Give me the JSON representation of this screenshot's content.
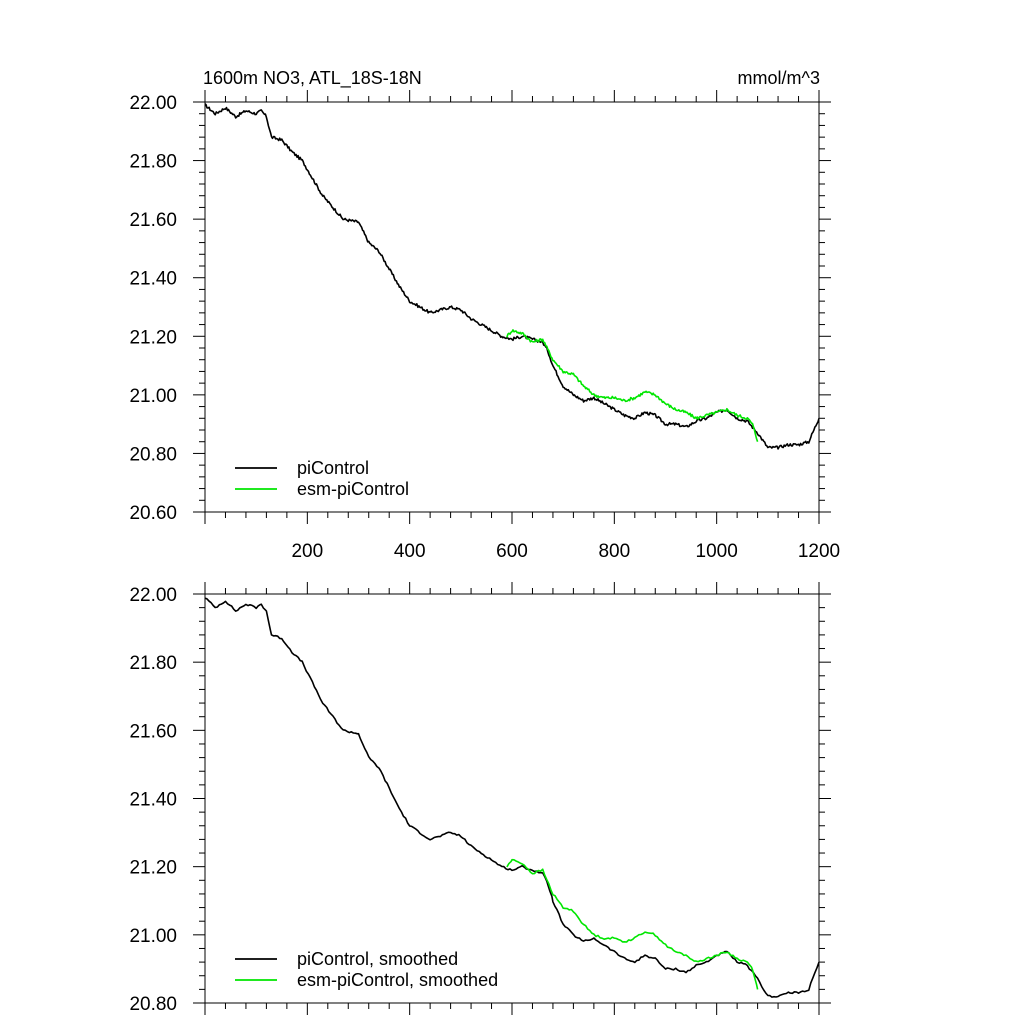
{
  "figure": {
    "title": "1600m NO3, ATL_18S-18N",
    "units": "mmol/m^3"
  },
  "colors": {
    "picontrol": "#000000",
    "esm_picontrol": "#00e600",
    "axis": "#000000"
  },
  "chart_data": [
    {
      "type": "line",
      "panel": "top",
      "title": "1600m NO3, ATL_18S-18N",
      "units": "mmol/m^3",
      "xlim": [
        0,
        1200
      ],
      "ylim": [
        20.6,
        22.0
      ],
      "xticks": [
        200,
        400,
        600,
        800,
        1000,
        1200
      ],
      "xtick_labels": [
        "200",
        "400",
        "600",
        "800",
        "1000",
        "1200"
      ],
      "yticks": [
        20.6,
        20.8,
        21.0,
        21.2,
        21.4,
        21.6,
        21.8,
        22.0
      ],
      "ytick_labels": [
        "20.60",
        "20.80",
        "21.00",
        "21.20",
        "21.40",
        "21.60",
        "21.80",
        "22.00"
      ],
      "legend": {
        "position": "bottom-left",
        "entries": [
          "piControl",
          "esm-piControl"
        ]
      },
      "series": [
        {
          "name": "piControl",
          "color": "#000000",
          "x": [
            0,
            20,
            40,
            60,
            80,
            100,
            110,
            120,
            130,
            150,
            170,
            190,
            210,
            230,
            250,
            270,
            300,
            320,
            340,
            360,
            380,
            400,
            420,
            440,
            460,
            480,
            500,
            520,
            540,
            560,
            580,
            600,
            620,
            640,
            660,
            670,
            680,
            700,
            720,
            740,
            760,
            780,
            800,
            820,
            840,
            860,
            880,
            900,
            920,
            940,
            960,
            980,
            1000,
            1020,
            1040,
            1060,
            1080,
            1100,
            1120,
            1140,
            1160,
            1180,
            1200
          ],
          "y": [
            21.99,
            21.96,
            21.98,
            21.95,
            21.97,
            21.96,
            21.97,
            21.95,
            21.88,
            21.87,
            21.83,
            21.8,
            21.74,
            21.68,
            21.64,
            21.6,
            21.59,
            21.52,
            21.49,
            21.43,
            21.37,
            21.32,
            21.3,
            21.28,
            21.29,
            21.3,
            21.29,
            21.26,
            21.24,
            21.22,
            21.2,
            21.19,
            21.2,
            21.19,
            21.18,
            21.15,
            21.1,
            21.03,
            21.0,
            20.98,
            20.99,
            20.97,
            20.95,
            20.93,
            20.92,
            20.94,
            20.93,
            20.9,
            20.9,
            20.89,
            20.91,
            20.92,
            20.94,
            20.95,
            20.92,
            20.91,
            20.87,
            20.82,
            20.82,
            20.83,
            20.83,
            20.84,
            20.92
          ]
        },
        {
          "name": "esm-piControl",
          "color": "#00e600",
          "x": [
            590,
            600,
            620,
            640,
            660,
            680,
            700,
            720,
            740,
            760,
            780,
            800,
            820,
            840,
            860,
            880,
            900,
            920,
            940,
            960,
            980,
            1000,
            1020,
            1040,
            1060,
            1070,
            1080
          ],
          "y": [
            21.2,
            21.22,
            21.21,
            21.18,
            21.19,
            21.12,
            21.08,
            21.07,
            21.03,
            21.0,
            20.99,
            20.99,
            20.98,
            20.99,
            21.01,
            21.0,
            20.97,
            20.95,
            20.94,
            20.92,
            20.93,
            20.94,
            20.95,
            20.93,
            20.92,
            20.9,
            20.84
          ]
        }
      ]
    },
    {
      "type": "line",
      "panel": "bottom",
      "xlim": [
        0,
        1200
      ],
      "ylim": [
        20.8,
        22.0
      ],
      "xticks": [
        200,
        400,
        600,
        800,
        1000,
        1200
      ],
      "yticks": [
        20.8,
        21.0,
        21.2,
        21.4,
        21.6,
        21.8,
        22.0
      ],
      "ytick_labels": [
        "20.80",
        "21.00",
        "21.20",
        "21.40",
        "21.60",
        "21.80",
        "22.00"
      ],
      "legend": {
        "position": "bottom-left",
        "entries": [
          "piControl, smoothed",
          "esm-piControl, smoothed"
        ]
      },
      "series": [
        {
          "name": "piControl, smoothed",
          "color": "#000000",
          "x": [
            0,
            20,
            40,
            60,
            80,
            100,
            110,
            120,
            130,
            150,
            170,
            190,
            210,
            230,
            250,
            270,
            300,
            320,
            340,
            360,
            380,
            400,
            420,
            440,
            460,
            480,
            500,
            520,
            540,
            560,
            580,
            600,
            620,
            640,
            660,
            670,
            680,
            700,
            720,
            740,
            760,
            780,
            800,
            820,
            840,
            860,
            880,
            900,
            920,
            940,
            960,
            980,
            1000,
            1020,
            1040,
            1060,
            1080,
            1100,
            1120,
            1140,
            1160,
            1180,
            1200
          ],
          "y": [
            21.99,
            21.96,
            21.98,
            21.95,
            21.97,
            21.96,
            21.97,
            21.95,
            21.88,
            21.87,
            21.83,
            21.8,
            21.74,
            21.68,
            21.64,
            21.6,
            21.59,
            21.52,
            21.49,
            21.43,
            21.37,
            21.32,
            21.3,
            21.28,
            21.29,
            21.3,
            21.29,
            21.26,
            21.24,
            21.22,
            21.2,
            21.19,
            21.2,
            21.19,
            21.18,
            21.15,
            21.1,
            21.03,
            21.0,
            20.98,
            20.99,
            20.97,
            20.95,
            20.93,
            20.92,
            20.94,
            20.93,
            20.9,
            20.9,
            20.89,
            20.91,
            20.92,
            20.94,
            20.95,
            20.92,
            20.91,
            20.87,
            20.82,
            20.82,
            20.83,
            20.83,
            20.84,
            20.92
          ]
        },
        {
          "name": "esm-piControl, smoothed",
          "color": "#00e600",
          "x": [
            590,
            600,
            620,
            640,
            660,
            680,
            700,
            720,
            740,
            760,
            780,
            800,
            820,
            840,
            860,
            880,
            900,
            920,
            940,
            960,
            980,
            1000,
            1020,
            1040,
            1060,
            1070,
            1080
          ],
          "y": [
            21.2,
            21.22,
            21.21,
            21.18,
            21.19,
            21.12,
            21.08,
            21.07,
            21.03,
            21.0,
            20.99,
            20.99,
            20.98,
            20.99,
            21.01,
            21.0,
            20.97,
            20.95,
            20.94,
            20.92,
            20.93,
            20.94,
            20.95,
            20.93,
            20.92,
            20.9,
            20.84
          ]
        }
      ]
    }
  ]
}
